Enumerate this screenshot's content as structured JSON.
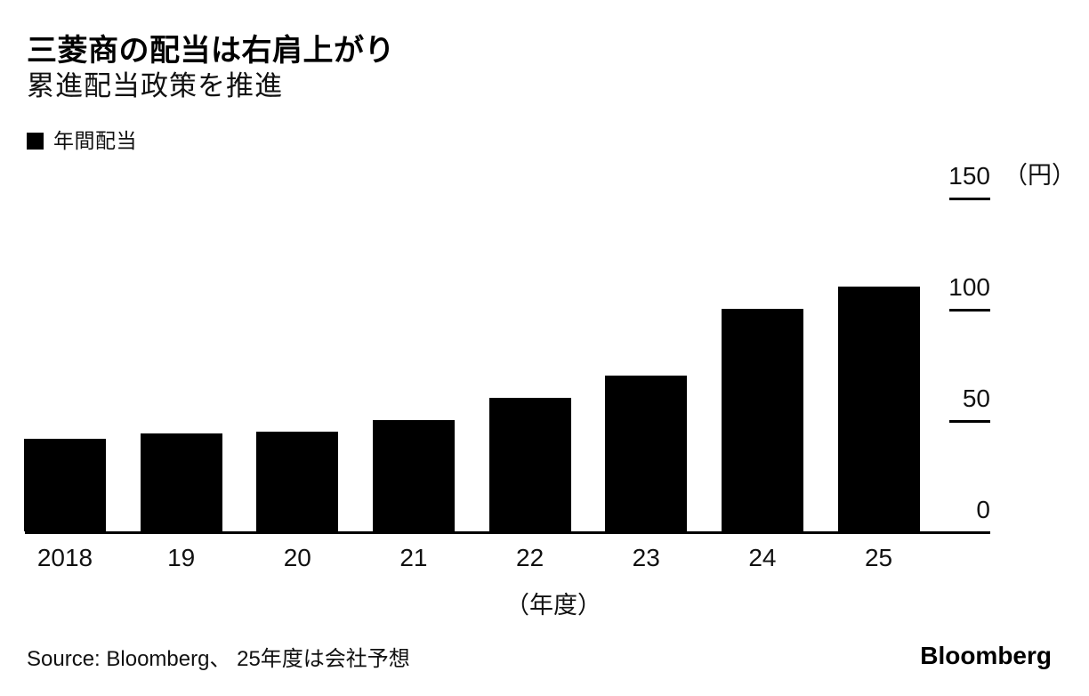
{
  "header": {
    "title": "三菱商の配当は右肩上がり",
    "subtitle": "累進配当政策を推進"
  },
  "legend": {
    "label": "年間配当"
  },
  "chart_data": {
    "type": "bar",
    "title": "三菱商の配当は右肩上がり",
    "subtitle": "累進配当政策を推進",
    "series_name": "年間配当",
    "categories": [
      "2018",
      "19",
      "20",
      "21",
      "22",
      "23",
      "24",
      "25"
    ],
    "values": [
      41.7,
      44,
      44.7,
      50,
      60,
      70,
      100,
      110
    ],
    "unit_label": "（円）",
    "xlabel": "（年度）",
    "ylabel": "",
    "y_ticks": [
      0,
      50,
      100,
      150
    ],
    "ylim": [
      0,
      150
    ],
    "bar_color": "#000000",
    "grid": "off",
    "tick_style": "short-dashes-right-side",
    "legend_position": "top-left",
    "note": "25年度は会社予想"
  },
  "footer": {
    "source": "Source: Bloomberg、 25年度は会社予想",
    "logo": "Bloomberg"
  }
}
